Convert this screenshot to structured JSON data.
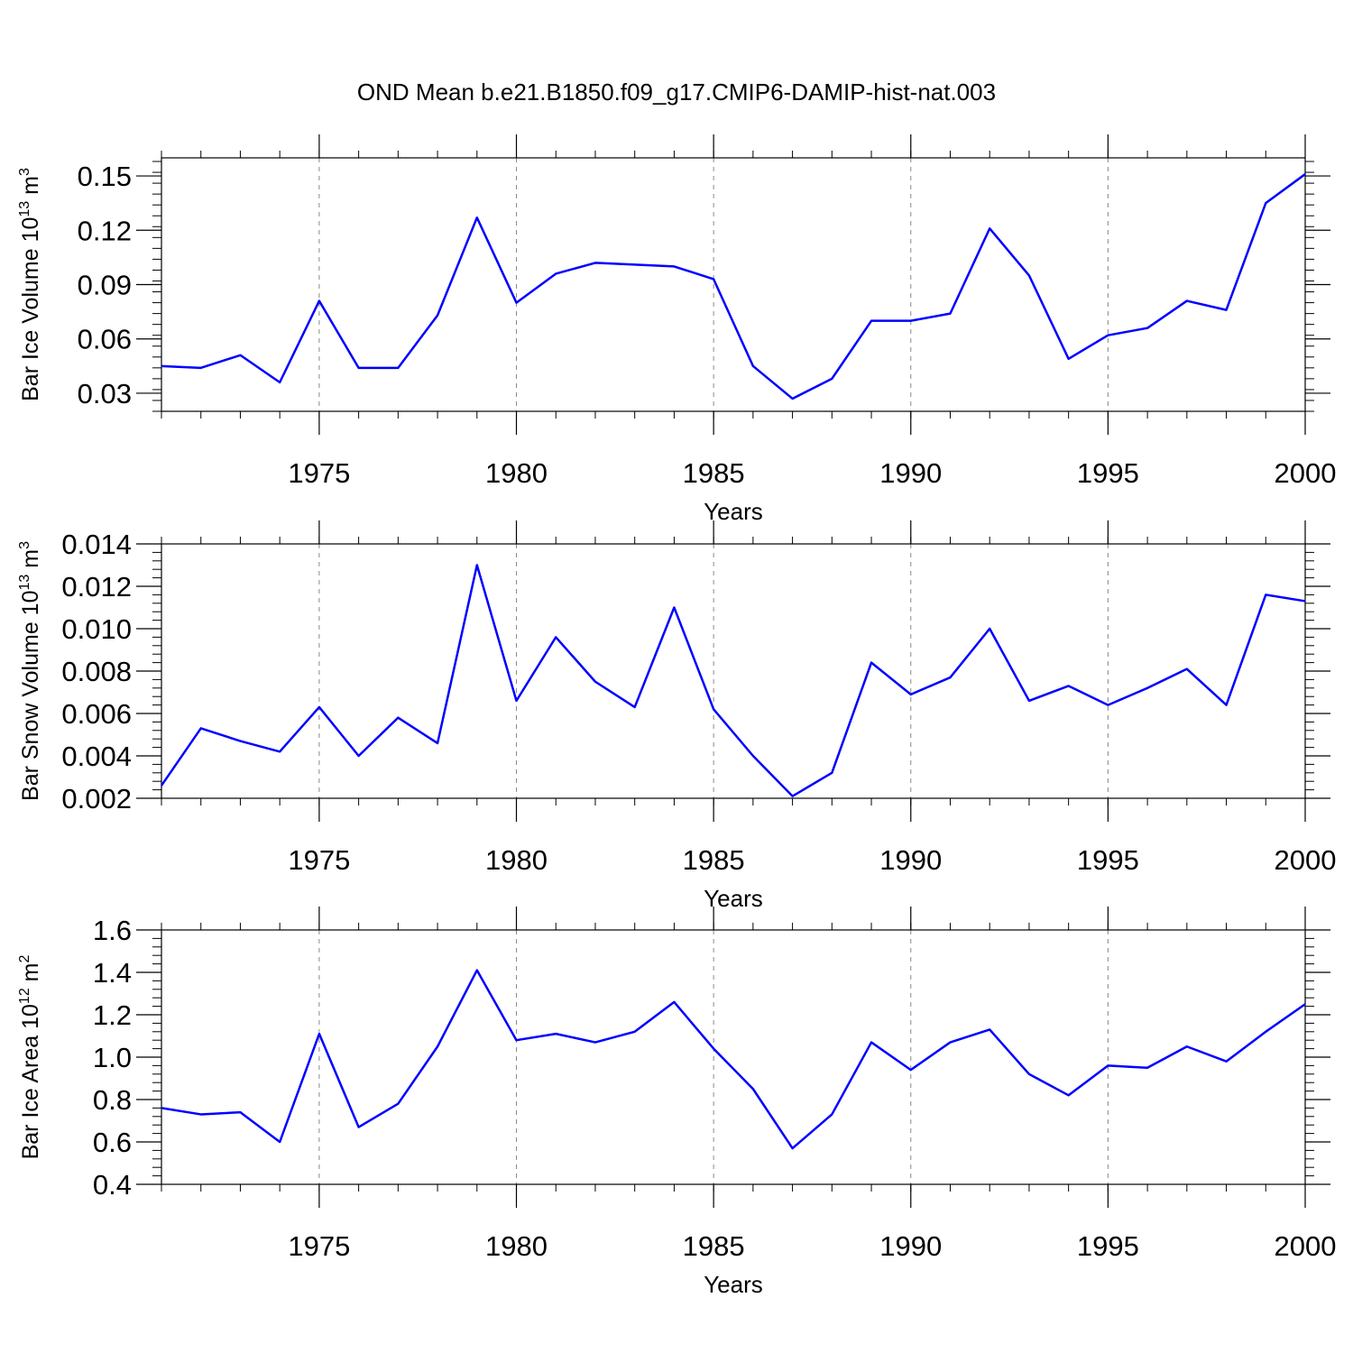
{
  "figure_title": "OND Mean b.e21.B1850.f09_g17.CMIP6-DAMIP-hist-nat.003",
  "chart_data": [
    {
      "type": "line",
      "ylabel_main": "Bar Ice Volume 10",
      "ylabel_exp": "13",
      "ylabel_unit": " m",
      "ylabel_unit_exp": "3",
      "xlabel": "Years",
      "xlim": [
        1971,
        2000
      ],
      "ylim": [
        0.02,
        0.16
      ],
      "yticks": [
        0.03,
        0.06,
        0.09,
        0.12,
        0.15
      ],
      "yticklabels": [
        "0.03",
        "0.06",
        "0.09",
        "0.12",
        "0.15"
      ],
      "xticks": [
        1975,
        1980,
        1985,
        1990,
        1995,
        2000
      ],
      "xticklabels": [
        "1975",
        "1980",
        "1985",
        "1990",
        "1995",
        "2000"
      ],
      "line_color": "#0000ff",
      "series": [
        {
          "name": "Bar Ice Volume",
          "values": [
            0.045,
            0.044,
            0.051,
            0.036,
            0.081,
            0.044,
            0.044,
            0.073,
            0.127,
            0.08,
            0.096,
            0.102,
            0.101,
            0.1,
            0.093,
            0.045,
            0.027,
            0.038,
            0.07,
            0.07,
            0.074,
            0.121,
            0.095,
            0.049,
            0.062,
            0.066,
            0.081,
            0.076,
            0.135,
            0.151
          ]
        }
      ],
      "x": [
        1971,
        1972,
        1973,
        1974,
        1975,
        1976,
        1977,
        1978,
        1979,
        1980,
        1981,
        1982,
        1983,
        1984,
        1985,
        1986,
        1987,
        1988,
        1989,
        1990,
        1991,
        1992,
        1993,
        1994,
        1995,
        1996,
        1997,
        1998,
        1999,
        2000
      ]
    },
    {
      "type": "line",
      "ylabel_main": "Bar Snow Volume 10",
      "ylabel_exp": "13",
      "ylabel_unit": " m",
      "ylabel_unit_exp": "3",
      "xlabel": "Years",
      "xlim": [
        1971,
        2000
      ],
      "ylim": [
        0.002,
        0.014
      ],
      "yticks": [
        0.002,
        0.004,
        0.006,
        0.008,
        0.01,
        0.012,
        0.014
      ],
      "yticklabels": [
        "0.002",
        "0.004",
        "0.006",
        "0.008",
        "0.010",
        "0.012",
        "0.014"
      ],
      "xticks": [
        1975,
        1980,
        1985,
        1990,
        1995,
        2000
      ],
      "xticklabels": [
        "1975",
        "1980",
        "1985",
        "1990",
        "1995",
        "2000"
      ],
      "line_color": "#0000ff",
      "series": [
        {
          "name": "Bar Snow Volume",
          "values": [
            0.0026,
            0.0053,
            0.0047,
            0.0042,
            0.0063,
            0.004,
            0.0058,
            0.0046,
            0.013,
            0.0066,
            0.0096,
            0.0075,
            0.0063,
            0.011,
            0.0062,
            0.004,
            0.0021,
            0.0032,
            0.0084,
            0.0069,
            0.0077,
            0.01,
            0.0066,
            0.0073,
            0.0064,
            0.0072,
            0.0081,
            0.0064,
            0.0116,
            0.0113
          ]
        }
      ],
      "x": [
        1971,
        1972,
        1973,
        1974,
        1975,
        1976,
        1977,
        1978,
        1979,
        1980,
        1981,
        1982,
        1983,
        1984,
        1985,
        1986,
        1987,
        1988,
        1989,
        1990,
        1991,
        1992,
        1993,
        1994,
        1995,
        1996,
        1997,
        1998,
        1999,
        2000
      ]
    },
    {
      "type": "line",
      "ylabel_main": "Bar Ice Area 10",
      "ylabel_exp": "12",
      "ylabel_unit": " m",
      "ylabel_unit_exp": "2",
      "xlabel": "Years",
      "xlim": [
        1971,
        2000
      ],
      "ylim": [
        0.4,
        1.6
      ],
      "yticks": [
        0.4,
        0.6,
        0.8,
        1.0,
        1.2,
        1.4,
        1.6
      ],
      "yticklabels": [
        "0.4",
        "0.6",
        "0.8",
        "1.0",
        "1.2",
        "1.4",
        "1.6"
      ],
      "xticks": [
        1975,
        1980,
        1985,
        1990,
        1995,
        2000
      ],
      "xticklabels": [
        "1975",
        "1980",
        "1985",
        "1990",
        "1995",
        "2000"
      ],
      "line_color": "#0000ff",
      "series": [
        {
          "name": "Bar Ice Area",
          "values": [
            0.76,
            0.73,
            0.74,
            0.6,
            1.11,
            0.67,
            0.78,
            1.05,
            1.41,
            1.08,
            1.11,
            1.07,
            1.12,
            1.26,
            1.04,
            0.85,
            0.57,
            0.73,
            1.07,
            0.94,
            1.07,
            1.13,
            0.92,
            0.82,
            0.96,
            0.95,
            1.05,
            0.98,
            1.12,
            1.25
          ]
        }
      ],
      "x": [
        1971,
        1972,
        1973,
        1974,
        1975,
        1976,
        1977,
        1978,
        1979,
        1980,
        1981,
        1982,
        1983,
        1984,
        1985,
        1986,
        1987,
        1988,
        1989,
        1990,
        1991,
        1992,
        1993,
        1994,
        1995,
        1996,
        1997,
        1998,
        1999,
        2000
      ]
    }
  ]
}
